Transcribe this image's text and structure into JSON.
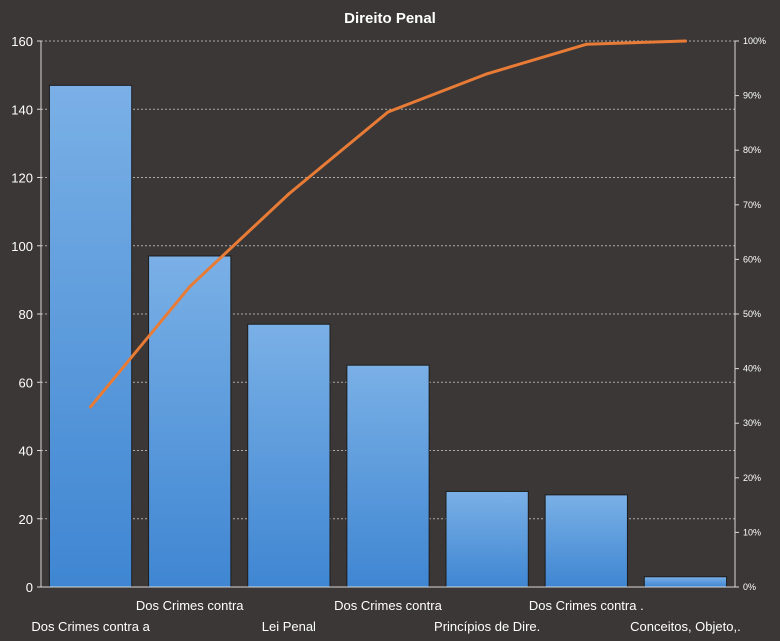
{
  "chart_data": {
    "type": "bar",
    "title": "Direito  Penal",
    "categories": [
      "Dos Crimes contra  a",
      "Dos Crimes contra",
      "Lei Penal",
      "Dos Crimes contra",
      "Princípios de Dire.",
      "Dos Crimes contra  .",
      "Conceitos, Objeto,."
    ],
    "series": [
      {
        "type": "bar",
        "values": [
          147,
          97,
          77,
          65,
          28,
          27,
          3
        ]
      },
      {
        "type": "line",
        "axis": "right",
        "values": [
          33,
          55,
          72,
          87,
          94,
          99.4,
          100
        ]
      }
    ],
    "y_left": {
      "ylim": [
        0,
        160
      ],
      "ticks": [
        "0",
        "20",
        "40",
        "60",
        "80",
        "100",
        "120",
        "140",
        "160"
      ]
    },
    "y_right": {
      "ylim": [
        0,
        100
      ],
      "ticks": [
        "0%",
        "10%",
        "20%",
        "30%",
        "40%",
        "50%",
        "60%",
        "70%",
        "80%",
        "90%",
        "100%"
      ]
    },
    "grid": true,
    "colors": {
      "background": "#3a3736",
      "bar": "#4a90d9",
      "bar_highlight": "#79b0e6",
      "line": "#e87b35",
      "grid": "#c8c8c8",
      "text": "#ffffff"
    }
  }
}
